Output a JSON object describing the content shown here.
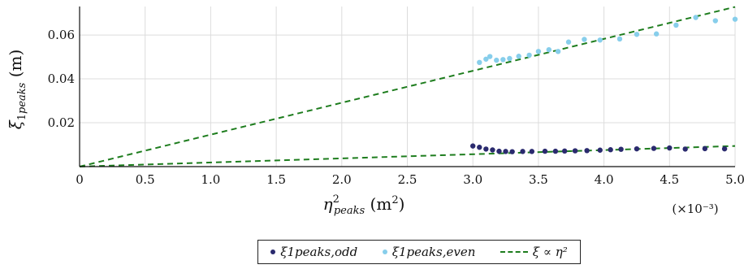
{
  "chart_data": {
    "type": "scatter",
    "xlabel": "η²peaks (m²)",
    "ylabel": "ξ1peaks (m)",
    "x_multiplier": "(×10⁻³)",
    "xlim": [
      0,
      5.0
    ],
    "ylim": [
      0,
      0.073
    ],
    "x_ticks": [
      "0",
      "0.5",
      "1.0",
      "1.5",
      "2.0",
      "2.5",
      "3.0",
      "3.5",
      "4.0",
      "4.5",
      "5.0"
    ],
    "y_ticks": [
      "0.02",
      "0.04",
      "0.06"
    ],
    "grid": true,
    "legend_position": "bottom",
    "series": [
      {
        "name": "ξ1peaks,odd",
        "kind": "points",
        "color": "#2a2a6e",
        "points": [
          [
            3.0,
            0.0094
          ],
          [
            3.05,
            0.0088
          ],
          [
            3.1,
            0.008
          ],
          [
            3.15,
            0.0076
          ],
          [
            3.2,
            0.007
          ],
          [
            3.25,
            0.0069
          ],
          [
            3.3,
            0.0068
          ],
          [
            3.38,
            0.0069
          ],
          [
            3.45,
            0.0069
          ],
          [
            3.55,
            0.007
          ],
          [
            3.63,
            0.007
          ],
          [
            3.7,
            0.0071
          ],
          [
            3.78,
            0.0072
          ],
          [
            3.87,
            0.0073
          ],
          [
            3.97,
            0.0075
          ],
          [
            4.05,
            0.0077
          ],
          [
            4.13,
            0.0079
          ],
          [
            4.25,
            0.0081
          ],
          [
            4.38,
            0.0083
          ],
          [
            4.5,
            0.0085
          ],
          [
            4.62,
            0.008
          ],
          [
            4.77,
            0.0082
          ],
          [
            4.92,
            0.0081
          ]
        ]
      },
      {
        "name": "ξ1peaks,even",
        "kind": "points",
        "color": "#87ceeb",
        "points": [
          [
            3.05,
            0.0475
          ],
          [
            3.1,
            0.049
          ],
          [
            3.13,
            0.0502
          ],
          [
            3.18,
            0.0485
          ],
          [
            3.23,
            0.0488
          ],
          [
            3.28,
            0.0493
          ],
          [
            3.35,
            0.0503
          ],
          [
            3.43,
            0.0508
          ],
          [
            3.5,
            0.0525
          ],
          [
            3.58,
            0.0533
          ],
          [
            3.65,
            0.0525
          ],
          [
            3.73,
            0.0568
          ],
          [
            3.85,
            0.058
          ],
          [
            3.97,
            0.0577
          ],
          [
            4.12,
            0.0582
          ],
          [
            4.25,
            0.0603
          ],
          [
            4.4,
            0.0605
          ],
          [
            4.55,
            0.0645
          ],
          [
            4.7,
            0.068
          ],
          [
            4.85,
            0.0665
          ],
          [
            5.0,
            0.0672
          ]
        ]
      },
      {
        "name": "ξ ∝ η²",
        "kind": "lines",
        "color": "#1e7d1e",
        "lines": [
          [
            [
              0,
              0
            ],
            [
              5.0,
              0.0728
            ]
          ],
          [
            [
              0,
              0
            ],
            [
              5.0,
              0.0094
            ]
          ]
        ]
      }
    ]
  },
  "legend": {
    "odd": "ξ1peaks,odd",
    "even": "ξ1peaks,even",
    "fit": "ξ ∝ η²"
  }
}
